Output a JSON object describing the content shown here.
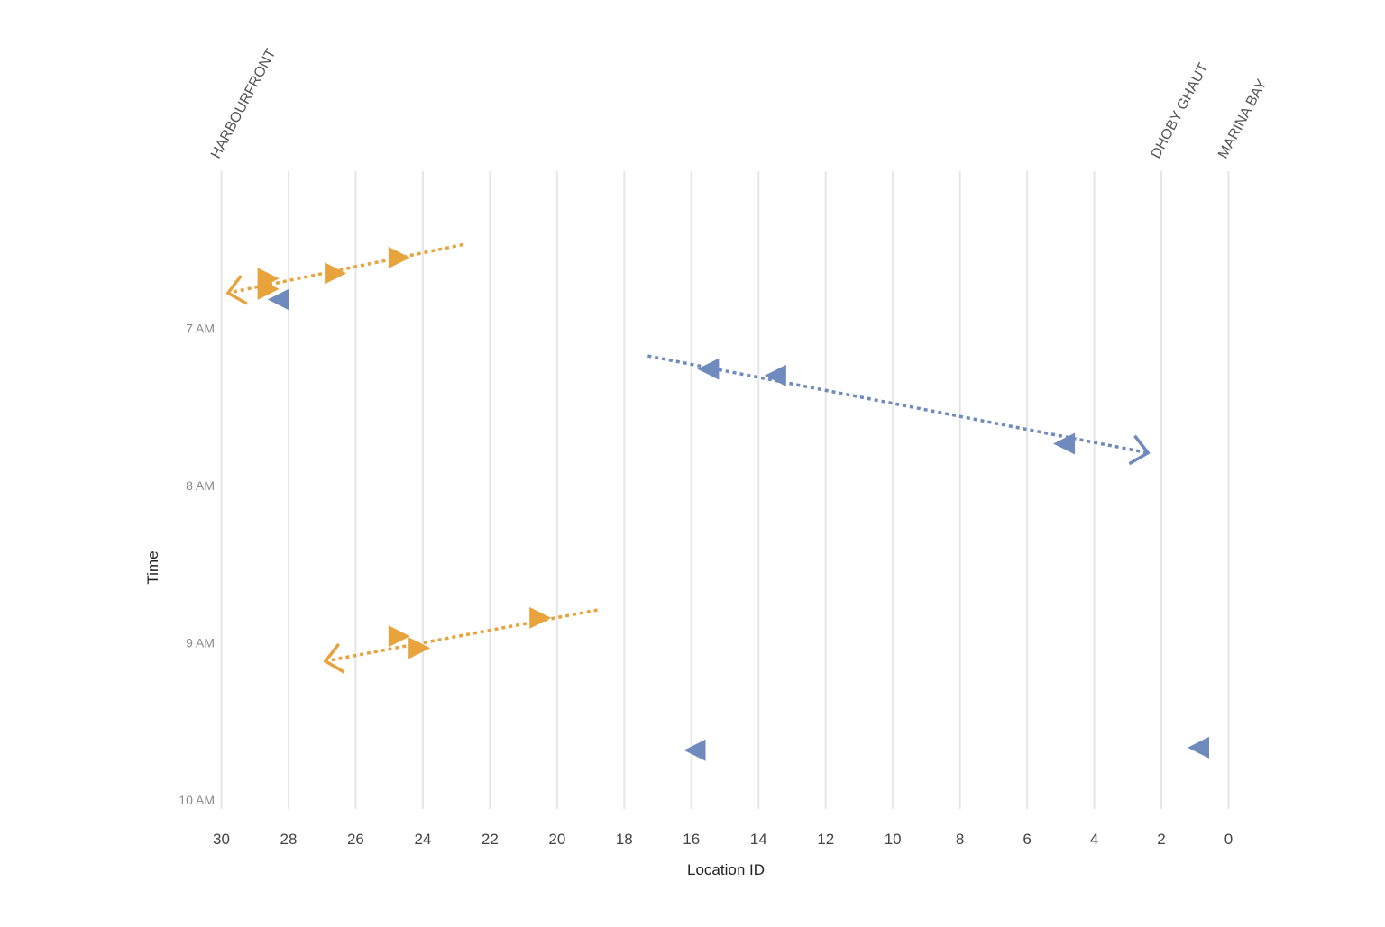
{
  "chart_data": {
    "type": "scatter",
    "title": "",
    "xlabel": "Location ID",
    "ylabel": "Time",
    "x_reversed": true,
    "xlim": [
      30,
      0
    ],
    "ylim_minutes": [
      360,
      600
    ],
    "x_ticks": [
      30,
      28,
      26,
      24,
      22,
      20,
      18,
      16,
      14,
      12,
      10,
      8,
      6,
      4,
      2,
      0
    ],
    "x_tick_labels": [
      "30",
      "28",
      "26",
      "24",
      "22",
      "20",
      "18",
      "16",
      "14",
      "12",
      "10",
      "8",
      "6",
      "4",
      "2",
      "0"
    ],
    "y_ticks": [
      {
        "minutes": 420,
        "label": "7 AM"
      },
      {
        "minutes": 480,
        "label": "8 AM"
      },
      {
        "minutes": 540,
        "label": "9 AM"
      },
      {
        "minutes": 600,
        "label": "10 AM"
      }
    ],
    "grid": true,
    "station_labels": [
      {
        "location": 30,
        "label": "HARBOURFRONT"
      },
      {
        "location": 2,
        "label": "DHOBY GHAUT"
      },
      {
        "location": 0,
        "label": "MARINA BAY"
      }
    ],
    "colors": {
      "toward_harbourfront": "#e8a33d",
      "toward_marina_bay": "#6f8bbd",
      "grid": "#e6e6e6"
    },
    "series": [
      {
        "name": "trip-1",
        "color_key": "toward_harbourfront",
        "path": [
          {
            "x": 22.8,
            "t": 388.0
          },
          {
            "x": 29.8,
            "t": 406.5
          }
        ],
        "markers": [
          {
            "x": 24.7,
            "t": 393.0,
            "dir": "right"
          },
          {
            "x": 26.6,
            "t": 399.0,
            "dir": "right"
          },
          {
            "x": 28.6,
            "t": 401.0,
            "dir": "right"
          },
          {
            "x": 28.6,
            "t": 405.0,
            "dir": "right"
          }
        ]
      },
      {
        "name": "trip-2",
        "color_key": "toward_marina_bay",
        "path": [
          {
            "x": 17.3,
            "t": 430.5
          },
          {
            "x": 2.4,
            "t": 467.5
          }
        ],
        "markers": [
          {
            "x": 15.5,
            "t": 435.5,
            "dir": "left"
          },
          {
            "x": 13.5,
            "t": 438.0,
            "dir": "left"
          },
          {
            "x": 4.9,
            "t": 464.0,
            "dir": "left"
          }
        ]
      },
      {
        "name": "trip-3",
        "color_key": "toward_harbourfront",
        "path": [
          {
            "x": 18.8,
            "t": 527.5
          },
          {
            "x": 26.9,
            "t": 547.0
          }
        ],
        "markers": [
          {
            "x": 20.5,
            "t": 530.5,
            "dir": "right"
          },
          {
            "x": 24.7,
            "t": 537.5,
            "dir": "right"
          },
          {
            "x": 24.1,
            "t": 542.0,
            "dir": "right"
          }
        ]
      },
      {
        "name": "isolated",
        "color_key": "toward_marina_bay",
        "path": [],
        "markers": [
          {
            "x": 28.3,
            "t": 409.0,
            "dir": "left"
          },
          {
            "x": 15.9,
            "t": 581.0,
            "dir": "left"
          },
          {
            "x": 0.9,
            "t": 580.0,
            "dir": "left"
          }
        ]
      }
    ]
  }
}
